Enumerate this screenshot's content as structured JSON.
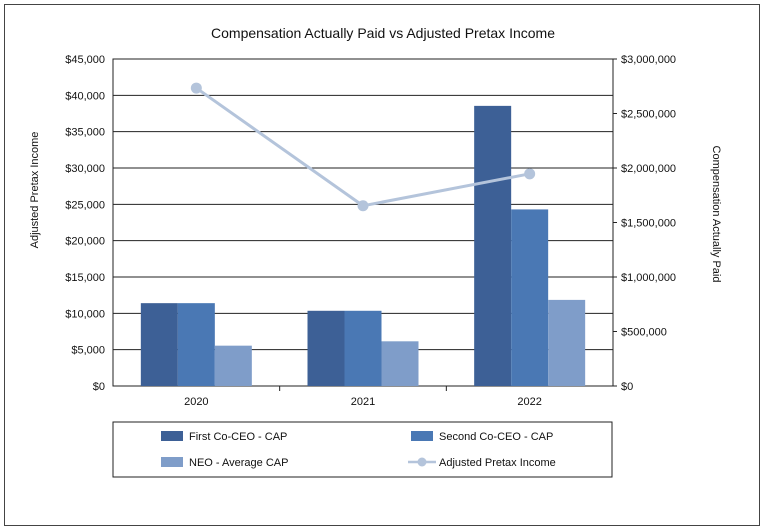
{
  "chart_data": {
    "type": "bar",
    "title": "Compensation Actually Paid vs Adjusted Pretax Income",
    "categories": [
      "2020",
      "2021",
      "2022"
    ],
    "left_axis": {
      "label": "Adjusted Pretax Income",
      "range": [
        0,
        45000
      ],
      "ticks": [
        0,
        5000,
        10000,
        15000,
        20000,
        25000,
        30000,
        35000,
        40000,
        45000
      ],
      "tick_labels": [
        "$0",
        "$5,000",
        "$10,000",
        "$15,000",
        "$20,000",
        "$25,000",
        "$30,000",
        "$35,000",
        "$40,000",
        "$45,000"
      ]
    },
    "right_axis": {
      "label": "Compensation Actually Paid",
      "range": [
        0,
        3000000
      ],
      "ticks": [
        0,
        500000,
        1000000,
        1500000,
        2000000,
        2500000,
        3000000
      ],
      "tick_labels": [
        "$0",
        "$500,000",
        "$1,000,000",
        "$1,500,000",
        "$2,000,000",
        "$2,500,000",
        "$3,000,000"
      ]
    },
    "series": [
      {
        "name": "First Co-CEO - CAP",
        "kind": "bar",
        "axis": "right",
        "color": "#3d6096",
        "values": [
          760000,
          690000,
          2570000
        ]
      },
      {
        "name": "Second Co-CEO - CAP",
        "kind": "bar",
        "axis": "right",
        "color": "#4a78b4",
        "values": [
          760000,
          690000,
          1620000
        ]
      },
      {
        "name": "NEO - Average CAP",
        "kind": "bar",
        "axis": "right",
        "color": "#7f9dc9",
        "values": [
          370000,
          410000,
          790000
        ]
      },
      {
        "name": "Adjusted Pretax Income",
        "kind": "line",
        "axis": "left",
        "color": "#b4c4db",
        "values": [
          41000,
          24800,
          29200
        ]
      }
    ],
    "grid": "horizontal",
    "legend": "bottom"
  }
}
